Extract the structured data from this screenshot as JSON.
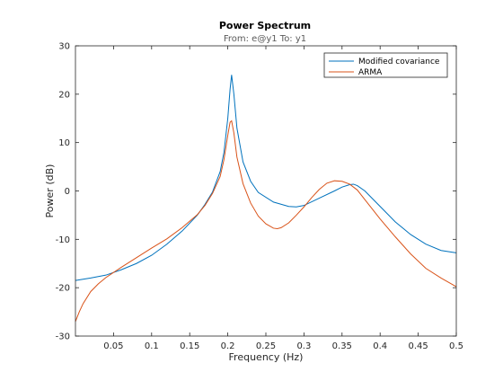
{
  "chart_data": {
    "type": "line",
    "title": "Power Spectrum",
    "subtitle": "From: e@y1  To: y1",
    "xlabel": "Frequency  (Hz)",
    "ylabel": "Power (dB)",
    "xlim": [
      0,
      0.5
    ],
    "ylim": [
      -30,
      30
    ],
    "xticks": [
      "0.05",
      "0.1",
      "0.15",
      "0.2",
      "0.25",
      "0.3",
      "0.35",
      "0.4",
      "0.45",
      "0.5"
    ],
    "xtick_values": [
      0.05,
      0.1,
      0.15,
      0.2,
      0.25,
      0.3,
      0.35,
      0.4,
      0.45,
      0.5
    ],
    "yticks": [
      "-30",
      "-20",
      "-10",
      "0",
      "10",
      "20",
      "30"
    ],
    "ytick_values": [
      -30,
      -20,
      -10,
      0,
      10,
      20,
      30
    ],
    "grid": false,
    "legend_position": "top-right",
    "series": [
      {
        "name": "Modified covariance",
        "color": "#0072bd",
        "x": [
          0.0,
          0.02,
          0.04,
          0.06,
          0.08,
          0.1,
          0.12,
          0.14,
          0.16,
          0.17,
          0.18,
          0.19,
          0.195,
          0.2,
          0.203,
          0.205,
          0.208,
          0.212,
          0.22,
          0.23,
          0.24,
          0.26,
          0.28,
          0.29,
          0.3,
          0.32,
          0.34,
          0.35,
          0.36,
          0.365,
          0.37,
          0.38,
          0.4,
          0.42,
          0.44,
          0.46,
          0.48,
          0.5
        ],
        "y": [
          -18.5,
          -18.0,
          -17.4,
          -16.3,
          -15.0,
          -13.3,
          -11.0,
          -8.3,
          -5.0,
          -2.8,
          -0.2,
          4.0,
          8.0,
          15.0,
          21.0,
          24.0,
          20.0,
          13.0,
          6.0,
          2.0,
          -0.3,
          -2.3,
          -3.2,
          -3.3,
          -3.0,
          -1.5,
          0.0,
          0.8,
          1.3,
          1.4,
          1.1,
          0.0,
          -3.2,
          -6.4,
          -9.0,
          -11.0,
          -12.3,
          -12.8
        ]
      },
      {
        "name": "ARMA",
        "color": "#d95319",
        "x": [
          0.0,
          0.005,
          0.01,
          0.02,
          0.03,
          0.04,
          0.06,
          0.08,
          0.1,
          0.12,
          0.14,
          0.16,
          0.17,
          0.18,
          0.19,
          0.195,
          0.2,
          0.203,
          0.205,
          0.208,
          0.212,
          0.22,
          0.23,
          0.24,
          0.25,
          0.26,
          0.265,
          0.27,
          0.28,
          0.29,
          0.3,
          0.31,
          0.32,
          0.33,
          0.34,
          0.35,
          0.36,
          0.37,
          0.38,
          0.4,
          0.42,
          0.44,
          0.46,
          0.48,
          0.5
        ],
        "y": [
          -27.0,
          -25.0,
          -23.3,
          -20.8,
          -19.2,
          -17.9,
          -15.8,
          -13.8,
          -11.8,
          -9.9,
          -7.6,
          -4.9,
          -3.0,
          -0.5,
          3.0,
          6.5,
          11.5,
          14.2,
          14.5,
          12.0,
          7.0,
          1.5,
          -2.5,
          -5.2,
          -6.8,
          -7.7,
          -7.8,
          -7.6,
          -6.6,
          -5.0,
          -3.3,
          -1.4,
          0.3,
          1.6,
          2.1,
          2.0,
          1.4,
          0.2,
          -1.8,
          -5.8,
          -9.5,
          -13.0,
          -16.0,
          -18.0,
          -19.8
        ]
      }
    ]
  }
}
